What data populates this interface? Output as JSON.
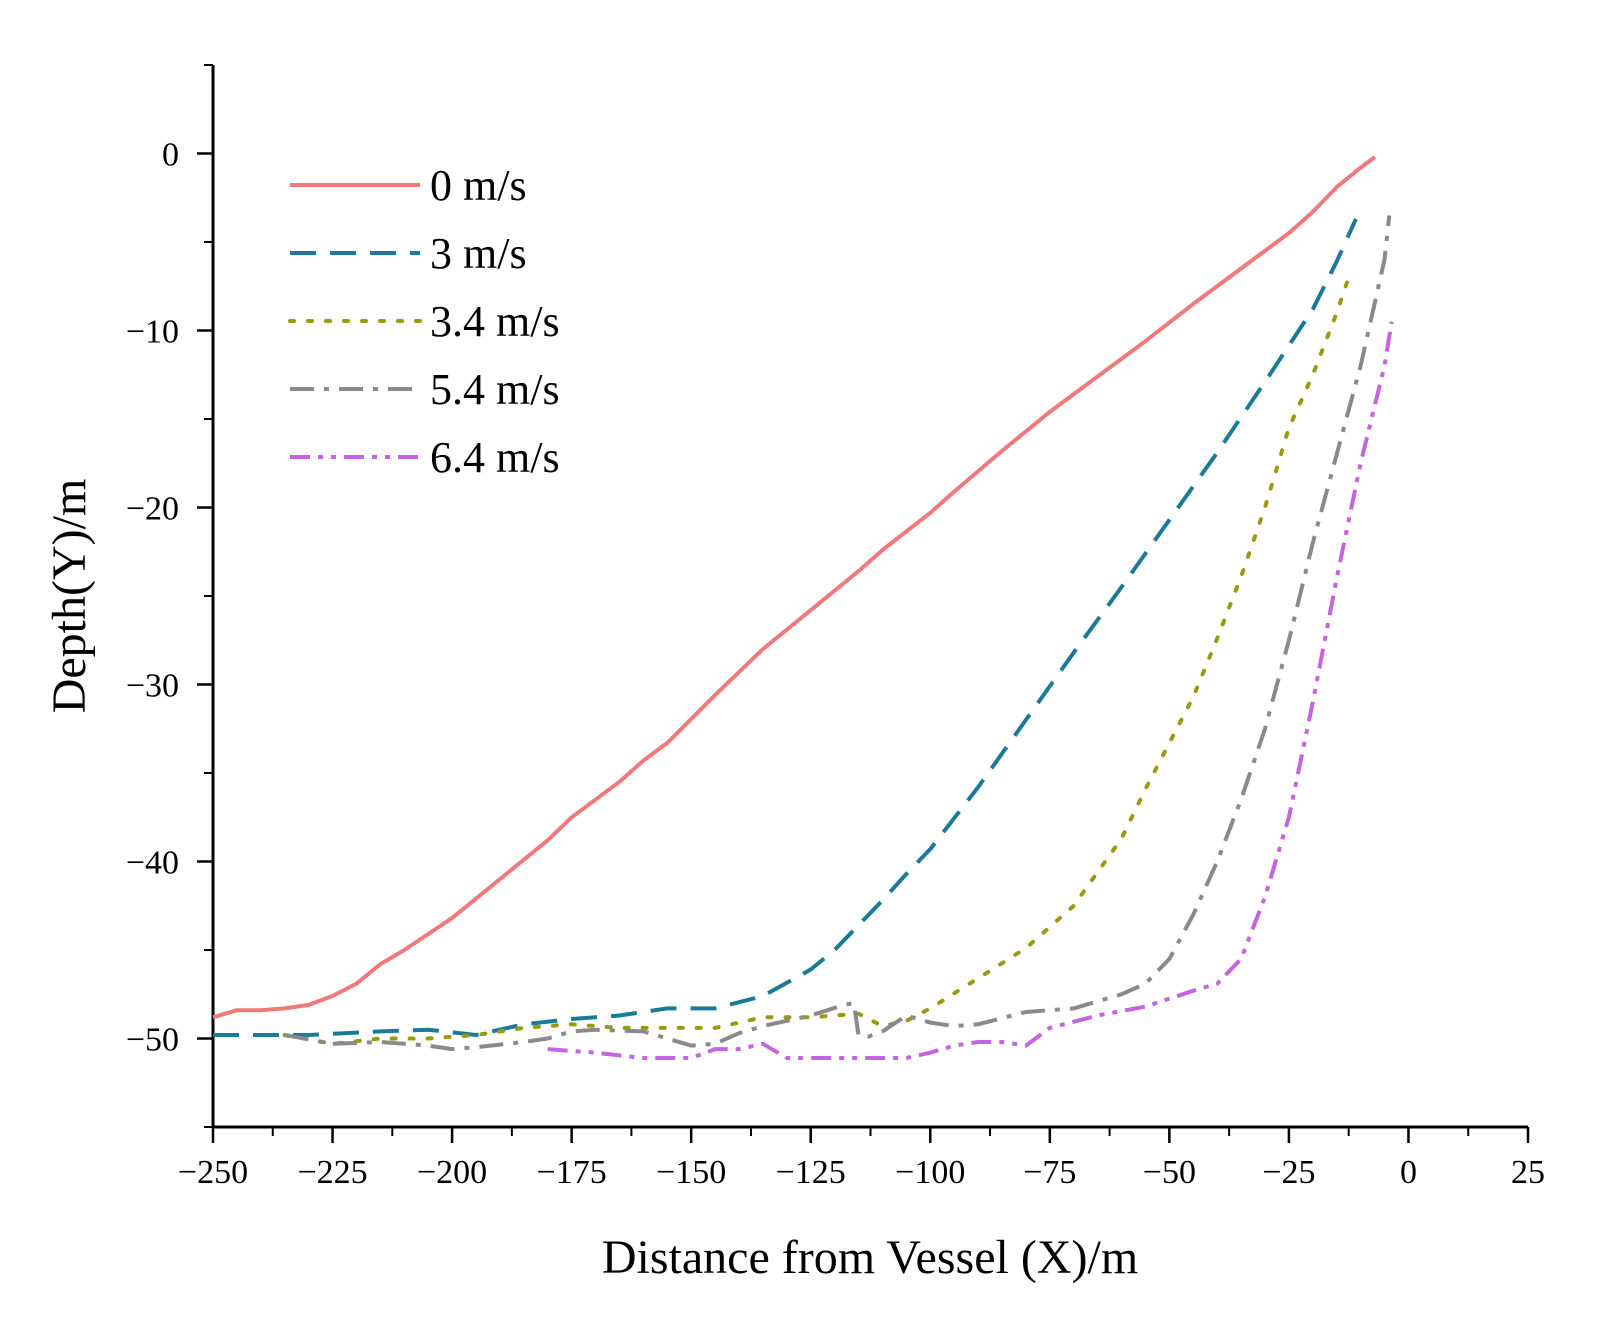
{
  "chart_data": {
    "type": "line",
    "title": "",
    "xlabel": "Distance from Vessel (X)/m",
    "ylabel": "Depth(Y)/m",
    "xlim": [
      -250,
      25
    ],
    "ylim": [
      -55,
      5
    ],
    "xticks": [
      -250,
      -225,
      -200,
      -175,
      -150,
      -125,
      -100,
      -75,
      -50,
      -25,
      0,
      25
    ],
    "xtick_labels": [
      "−250",
      "−225",
      "−200",
      "−175",
      "−150",
      "−125",
      "−100",
      "−75",
      "−50",
      "−25",
      "0",
      "25"
    ],
    "yticks": [
      0,
      -10,
      -20,
      -30,
      -40,
      -50
    ],
    "ytick_labels": [
      "0",
      "−10",
      "−20",
      "−30",
      "−40",
      "−50"
    ],
    "legend_position": "top-left",
    "series": [
      {
        "name": "0 m/s",
        "color": "#f07a7a",
        "dash": "solid",
        "x": [
          -250,
          -245,
          -240,
          -235,
          -230,
          -225,
          -220,
          -215,
          -210,
          -200,
          -190,
          -180,
          -175,
          -165,
          -160,
          -155,
          -145,
          -135,
          -125,
          -115,
          -110,
          -100,
          -95,
          -85,
          -75,
          -65,
          -55,
          -45,
          -35,
          -25,
          -20,
          -15,
          -10,
          -7
        ],
        "y": [
          -48.8,
          -48.4,
          -48.4,
          -48.3,
          -48.1,
          -47.6,
          -46.9,
          -45.8,
          -45.0,
          -43.2,
          -41.0,
          -38.8,
          -37.5,
          -35.5,
          -34.3,
          -33.3,
          -30.6,
          -28.0,
          -25.8,
          -23.6,
          -22.4,
          -20.3,
          -19.1,
          -16.8,
          -14.6,
          -12.6,
          -10.6,
          -8.5,
          -6.5,
          -4.5,
          -3.3,
          -1.9,
          -0.8,
          -0.2
        ]
      },
      {
        "name": "3 m/s",
        "color": "#1a7a9a",
        "dash": "dashed",
        "x": [
          -250,
          -240,
          -230,
          -215,
          -205,
          -195,
          -185,
          -175,
          -165,
          -155,
          -145,
          -135,
          -125,
          -120,
          -115,
          -110,
          -105,
          -100,
          -90,
          -80,
          -70,
          -60,
          -50,
          -40,
          -30,
          -20,
          -15,
          -11
        ],
        "y": [
          -49.8,
          -49.8,
          -49.8,
          -49.6,
          -49.5,
          -49.8,
          -49.2,
          -48.9,
          -48.7,
          -48.3,
          -48.3,
          -47.6,
          -46.1,
          -45.0,
          -43.6,
          -42.2,
          -40.7,
          -39.3,
          -35.8,
          -32.0,
          -28.2,
          -24.5,
          -20.7,
          -16.9,
          -12.9,
          -8.8,
          -6.1,
          -3.7
        ]
      },
      {
        "name": "3.4 m/s",
        "color": "#9a9a10",
        "dash": "dotted",
        "x": [
          -235,
          -225,
          -215,
          -205,
          -195,
          -185,
          -175,
          -165,
          -155,
          -145,
          -135,
          -125,
          -115,
          -110,
          -105,
          -100,
          -90,
          -80,
          -70,
          -60,
          -55,
          -50,
          -45,
          -40,
          -35,
          -30,
          -25,
          -20,
          -15,
          -12
        ],
        "y": [
          -49.8,
          -50.3,
          -50.0,
          -50.0,
          -49.8,
          -49.4,
          -49.2,
          -49.4,
          -49.4,
          -49.4,
          -48.8,
          -48.8,
          -48.6,
          -49.3,
          -49.0,
          -48.3,
          -46.6,
          -44.9,
          -42.5,
          -38.7,
          -35.9,
          -33.3,
          -30.7,
          -27.4,
          -23.9,
          -20.0,
          -15.5,
          -12.5,
          -9.0,
          -6.6
        ]
      },
      {
        "name": "5.4 m/s",
        "color": "#8a8a8a",
        "dash": "dashdot",
        "x": [
          -235,
          -225,
          -215,
          -205,
          -200,
          -195,
          -185,
          -180,
          -175,
          -170,
          -160,
          -155,
          -150,
          -145,
          -140,
          -135,
          -125,
          -118,
          -116,
          -115,
          -113,
          -110,
          -105,
          -100,
          -95,
          -90,
          -80,
          -70,
          -60,
          -55,
          -50,
          -45,
          -40,
          -35,
          -30,
          -25,
          -20,
          -15,
          -10,
          -5,
          -4
        ],
        "y": [
          -49.8,
          -50.3,
          -50.2,
          -50.4,
          -50.6,
          -50.5,
          -50.2,
          -50.0,
          -49.6,
          -49.5,
          -49.6,
          -50.0,
          -50.4,
          -50.3,
          -49.7,
          -49.3,
          -48.7,
          -48.1,
          -48.0,
          -49.8,
          -49.9,
          -49.6,
          -48.7,
          -49.1,
          -49.3,
          -49.2,
          -48.5,
          -48.3,
          -47.5,
          -46.9,
          -45.5,
          -43.0,
          -40.0,
          -36.5,
          -32.5,
          -27.5,
          -22.0,
          -17.0,
          -12.0,
          -6.0,
          -3.5
        ]
      },
      {
        "name": "6.4 m/s",
        "color": "#c464e0",
        "dash": "dashdotdot",
        "x": [
          -180,
          -170,
          -160,
          -150,
          -145,
          -140,
          -135,
          -130,
          -120,
          -110,
          -105,
          -100,
          -95,
          -90,
          -85,
          -80,
          -75,
          -65,
          -55,
          -45,
          -40,
          -35,
          -30,
          -25,
          -20,
          -15,
          -10,
          -5,
          -3.5
        ],
        "y": [
          -50.6,
          -50.8,
          -51.1,
          -51.1,
          -50.6,
          -50.6,
          -50.3,
          -51.1,
          -51.1,
          -51.1,
          -51.1,
          -50.8,
          -50.4,
          -50.2,
          -50.2,
          -50.4,
          -49.4,
          -48.7,
          -48.2,
          -47.3,
          -46.9,
          -45.5,
          -42.0,
          -37.5,
          -31.0,
          -24.0,
          -17.5,
          -12.0,
          -9.5
        ]
      }
    ]
  }
}
